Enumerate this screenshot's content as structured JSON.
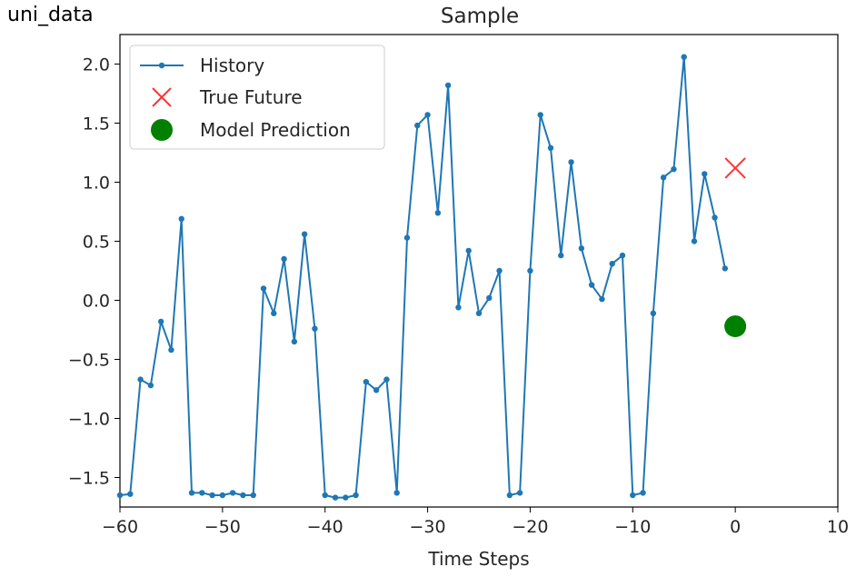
{
  "cell_label": "uni_data",
  "chart_data": {
    "type": "line",
    "title": "Sample",
    "xlabel": "Time Steps",
    "ylabel": "",
    "xlim": [
      -60,
      10
    ],
    "ylim": [
      -1.75,
      2.25
    ],
    "xticks": [
      -60,
      -50,
      -40,
      -30,
      -20,
      -10,
      0,
      10
    ],
    "xtick_labels": [
      "−60",
      "−50",
      "−40",
      "−30",
      "−20",
      "−10",
      "0",
      "10"
    ],
    "yticks": [
      -1.5,
      -1.0,
      -0.5,
      0.0,
      0.5,
      1.0,
      1.5,
      2.0
    ],
    "ytick_labels": [
      "−1.5",
      "−1.0",
      "−0.5",
      "0.0",
      "0.5",
      "1.0",
      "1.5",
      "2.0"
    ],
    "grid": false,
    "legend_position": "top-left",
    "series": [
      {
        "name": "History",
        "kind": "line-with-point-markers",
        "color": "#1f77b4",
        "x": [
          -60,
          -59,
          -58,
          -57,
          -56,
          -55,
          -54,
          -53,
          -52,
          -51,
          -50,
          -49,
          -48,
          -47,
          -46,
          -45,
          -44,
          -43,
          -42,
          -41,
          -40,
          -39,
          -38,
          -37,
          -36,
          -35,
          -34,
          -33,
          -32,
          -31,
          -30,
          -29,
          -28,
          -27,
          -26,
          -25,
          -24,
          -23,
          -22,
          -21,
          -20,
          -19,
          -18,
          -17,
          -16,
          -15,
          -14,
          -13,
          -12,
          -11,
          -10,
          -9,
          -8,
          -7,
          -6,
          -5,
          -4,
          -3,
          -2,
          -1
        ],
        "y": [
          -1.65,
          -1.64,
          -0.67,
          -0.72,
          -0.18,
          -0.42,
          0.69,
          -1.63,
          -1.63,
          -1.65,
          -1.65,
          -1.63,
          -1.65,
          -1.65,
          0.1,
          -0.11,
          0.35,
          -0.35,
          0.56,
          -0.24,
          -1.65,
          -1.67,
          -1.67,
          -1.65,
          -0.69,
          -0.76,
          -0.67,
          -1.63,
          0.53,
          1.48,
          1.57,
          0.74,
          1.82,
          -0.06,
          0.42,
          -0.11,
          0.02,
          0.25,
          -1.65,
          -1.63,
          0.25,
          1.57,
          1.29,
          0.38,
          1.17,
          0.44,
          0.13,
          0.01,
          0.31,
          0.38,
          -1.65,
          -1.63,
          -0.11,
          1.04,
          1.11,
          2.06,
          0.5,
          1.07,
          0.7,
          0.27
        ]
      },
      {
        "name": "True Future",
        "kind": "x-marker",
        "color": "#ff3333",
        "x": [
          0
        ],
        "y": [
          1.12
        ]
      },
      {
        "name": "Model Prediction",
        "kind": "circle-marker",
        "color": "#008000",
        "x": [
          0
        ],
        "y": [
          -0.22
        ]
      }
    ]
  }
}
